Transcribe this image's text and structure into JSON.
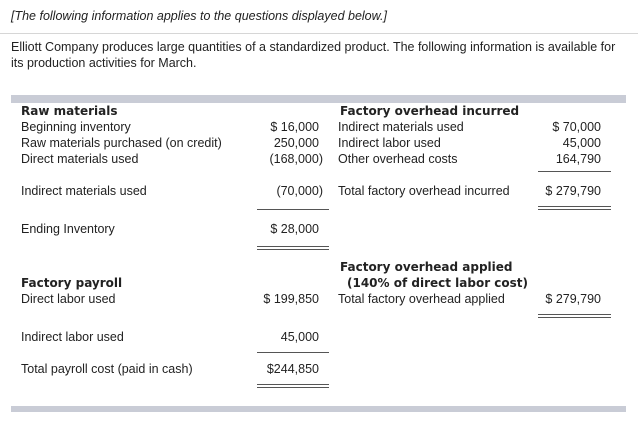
{
  "header": {
    "note": "[The following information applies to the questions displayed below.]"
  },
  "intro": "Elliott Company produces large quantities of a standardized product. The following information is available for its production activities for March.",
  "raw_materials": {
    "title": "Raw materials",
    "rows": [
      {
        "label": "Beginning inventory",
        "value": "$ 16,000"
      },
      {
        "label": "Raw materials purchased (on credit)",
        "value": "250,000"
      },
      {
        "label": "Direct materials used",
        "value": "(168,000)"
      },
      {
        "label": "Indirect materials used",
        "value": "(70,000)"
      },
      {
        "label": "Ending Inventory",
        "value": "$ 28,000"
      }
    ]
  },
  "payroll": {
    "title": "Factory payroll",
    "rows": [
      {
        "label": "Direct labor used",
        "value": "$ 199,850"
      },
      {
        "label": "Indirect labor used",
        "value": "45,000"
      },
      {
        "label": "Total payroll cost (paid in cash)",
        "value": "$244,850"
      }
    ]
  },
  "overhead_incurred": {
    "title": "Factory overhead incurred",
    "rows": [
      {
        "label": "Indirect materials used",
        "value": "$ 70,000"
      },
      {
        "label": "Indirect labor used",
        "value": "45,000"
      },
      {
        "label": "Other overhead costs",
        "value": "164,790"
      },
      {
        "label": "Total factory overhead incurred",
        "value": "$ 279,790"
      }
    ]
  },
  "overhead_applied": {
    "title_line1": "Factory overhead applied",
    "title_line2": "(140% of direct labor cost)",
    "row": {
      "label": "Total factory overhead applied",
      "value": "$ 279,790"
    }
  }
}
